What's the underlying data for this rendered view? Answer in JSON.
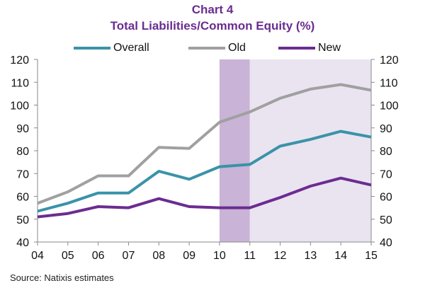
{
  "title": "Chart 4",
  "subtitle": "Total Liabilities/Common Equity (%)",
  "source": "Source: Natixis estimates",
  "chart_data": {
    "type": "line",
    "x": [
      "04",
      "05",
      "06",
      "07",
      "08",
      "09",
      "10",
      "11",
      "12",
      "13",
      "14",
      "15"
    ],
    "ylim": [
      40,
      120
    ],
    "yticks": [
      "40",
      "50",
      "60",
      "70",
      "80",
      "90",
      "100",
      "110",
      "120"
    ],
    "secondary_y_axis": true,
    "grid": false,
    "legend_position": "top",
    "shaded_regions": [
      {
        "from": "10",
        "to": "11",
        "color": "#C9B3D6"
      },
      {
        "from": "11",
        "to": "15",
        "color": "#EAE4F1"
      }
    ],
    "series": [
      {
        "name": "Overall",
        "color": "#3A93A8",
        "values": [
          53.5,
          57,
          61.5,
          61.5,
          71,
          67.5,
          73,
          74,
          82,
          85,
          88.5,
          86
        ]
      },
      {
        "name": "Old",
        "color": "#A0A0A0",
        "values": [
          57,
          62,
          69,
          69,
          81.5,
          81,
          92.5,
          97,
          103,
          107,
          109,
          106.5
        ]
      },
      {
        "name": "New",
        "color": "#6B2C91",
        "values": [
          51,
          52.5,
          55.5,
          55,
          59,
          55.5,
          55,
          55,
          59.5,
          64.5,
          68,
          65
        ]
      }
    ]
  }
}
